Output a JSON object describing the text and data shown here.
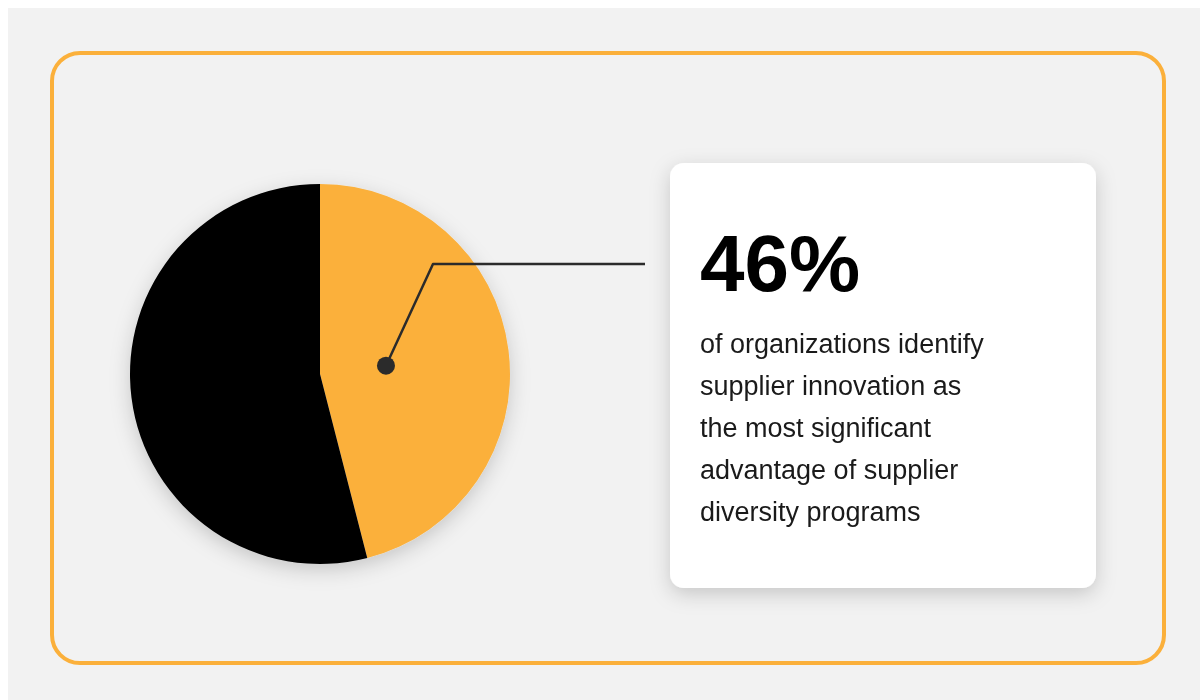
{
  "chart_data": {
    "type": "pie",
    "categories": [
      null,
      null
    ],
    "values": [
      46,
      54
    ],
    "colors": [
      "#fbb03b",
      "#000000"
    ],
    "value_labels": [
      "46%",
      null
    ],
    "annotations": [
      "of organizations identify supplier innovation as the most significant advantage of supplier diversity programs"
    ]
  }
}
